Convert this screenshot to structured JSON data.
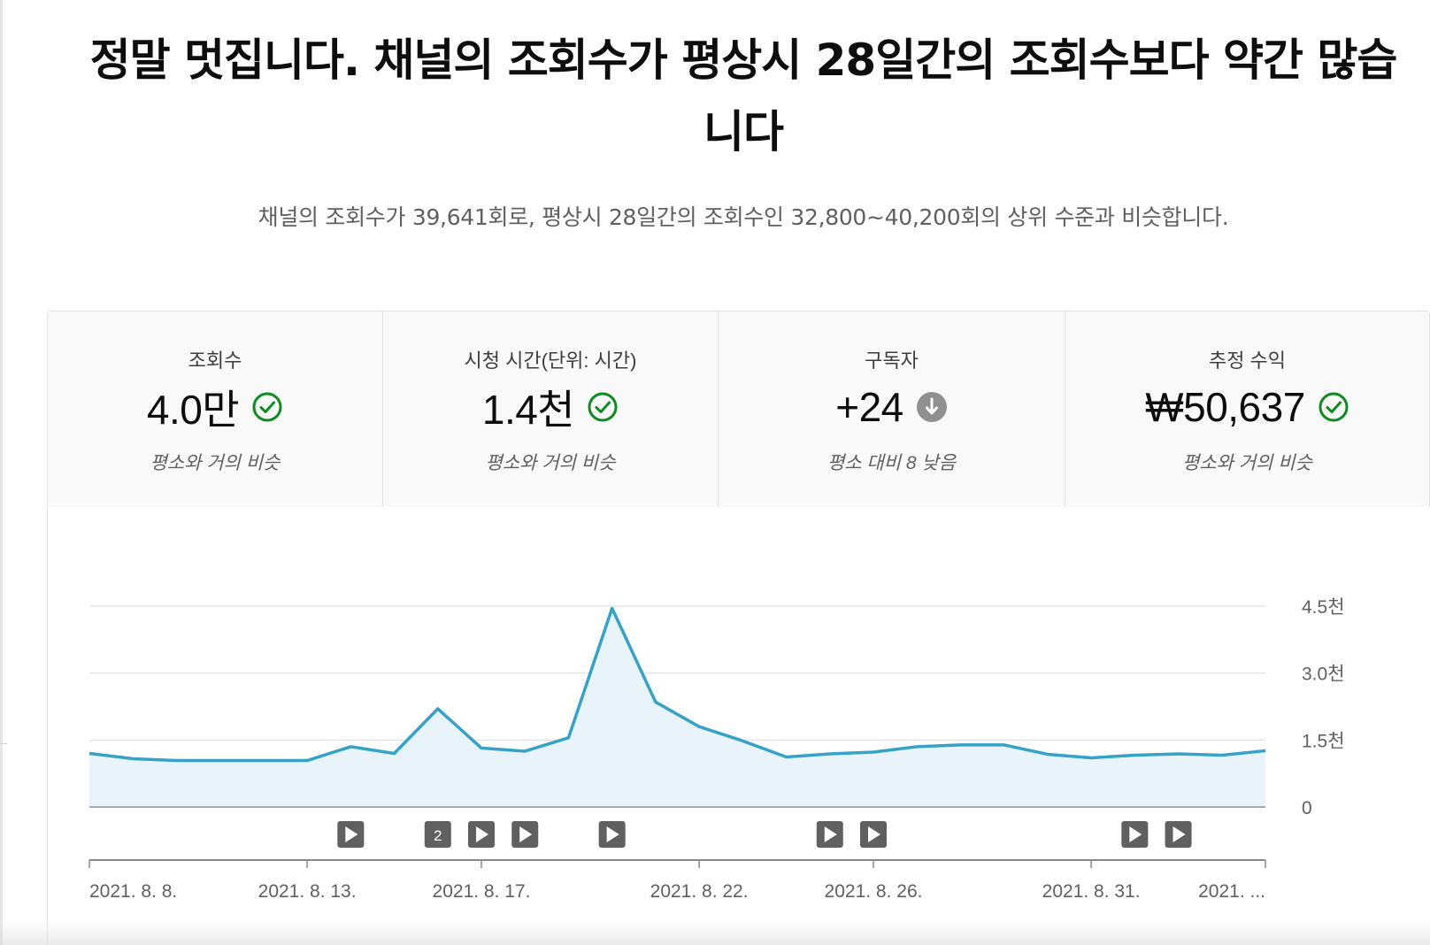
{
  "header": {
    "headline": "정말 멋집니다. 채널의 조회수가 평상시 28일간의 조회수보다 약간 많습니다",
    "subtext": "채널의 조회수가 39,641회로, 평상시 28일간의 조회수인 32,800~40,200회의 상위 수준과 비슷합니다."
  },
  "tabs": [
    {
      "label": "조회수",
      "value": "4.0만",
      "status": "check-circle-icon",
      "note": "평소와 거의 비슷",
      "active": true
    },
    {
      "label": "시청 시간(단위: 시간)",
      "value": "1.4천",
      "status": "check-circle-icon",
      "note": "평소와 거의 비슷",
      "active": false
    },
    {
      "label": "구독자",
      "value": "+24",
      "status": "arrow-down-circle-icon",
      "note": "평소 대비 8 낮음",
      "active": false
    },
    {
      "label": "추정 수익",
      "value": "₩50,637",
      "status": "check-circle-icon",
      "note": "평소와 거의 비슷",
      "active": false
    }
  ],
  "colors": {
    "accent": "#065fd4",
    "line": "#34a3c7",
    "fill": "#e8f4fa",
    "check": "#0b8c1f",
    "neutral": "#909090",
    "marker": "#606060"
  },
  "chart_data": {
    "type": "area",
    "x": [
      "2021. 8. 8.",
      "2021. 8. 9.",
      "2021. 8. 10.",
      "2021. 8. 11.",
      "2021. 8. 12.",
      "2021. 8. 13.",
      "2021. 8. 14.",
      "2021. 8. 15.",
      "2021. 8. 16.",
      "2021. 8. 17.",
      "2021. 8. 18.",
      "2021. 8. 19.",
      "2021. 8. 20.",
      "2021. 8. 21.",
      "2021. 8. 22.",
      "2021. 8. 23.",
      "2021. 8. 24.",
      "2021. 8. 25.",
      "2021. 8. 26.",
      "2021. 8. 27.",
      "2021. 8. 28.",
      "2021. 8. 29.",
      "2021. 8. 30.",
      "2021. 8. 31.",
      "2021. 9. 1.",
      "2021. 9. 2.",
      "2021. 9. 3.",
      "2021. 9. 4."
    ],
    "series": [
      {
        "values": [
          1200,
          1080,
          1040,
          1040,
          1040,
          1040,
          1350,
          1200,
          2200,
          1320,
          1250,
          1550,
          4450,
          2350,
          1800,
          1480,
          1120,
          1190,
          1230,
          1350,
          1390,
          1390,
          1180,
          1100,
          1160,
          1190,
          1160,
          1260
        ]
      }
    ],
    "ylim": [
      0,
      4500
    ],
    "yticks": [
      0,
      1500,
      3000,
      4500
    ],
    "ytick_labels": [
      "0",
      "1.5천",
      "3.0천",
      "4.5천"
    ],
    "xtick_labels": [
      "2021. 8. 8.",
      "2021. 8. 13.",
      "2021. 8. 17.",
      "2021. 8. 22.",
      "2021. 8. 26.",
      "2021. 8. 31.",
      "2021. ..."
    ],
    "xtick_index": [
      0,
      5,
      9,
      14,
      18,
      23,
      27
    ],
    "video_markers": [
      {
        "index": 6,
        "label": ""
      },
      {
        "index": 8,
        "label": "2"
      },
      {
        "index": 9,
        "label": ""
      },
      {
        "index": 10,
        "label": ""
      },
      {
        "index": 12,
        "label": ""
      },
      {
        "index": 17,
        "label": ""
      },
      {
        "index": 18,
        "label": ""
      },
      {
        "index": 24,
        "label": ""
      },
      {
        "index": 25,
        "label": ""
      }
    ],
    "grid": true
  }
}
